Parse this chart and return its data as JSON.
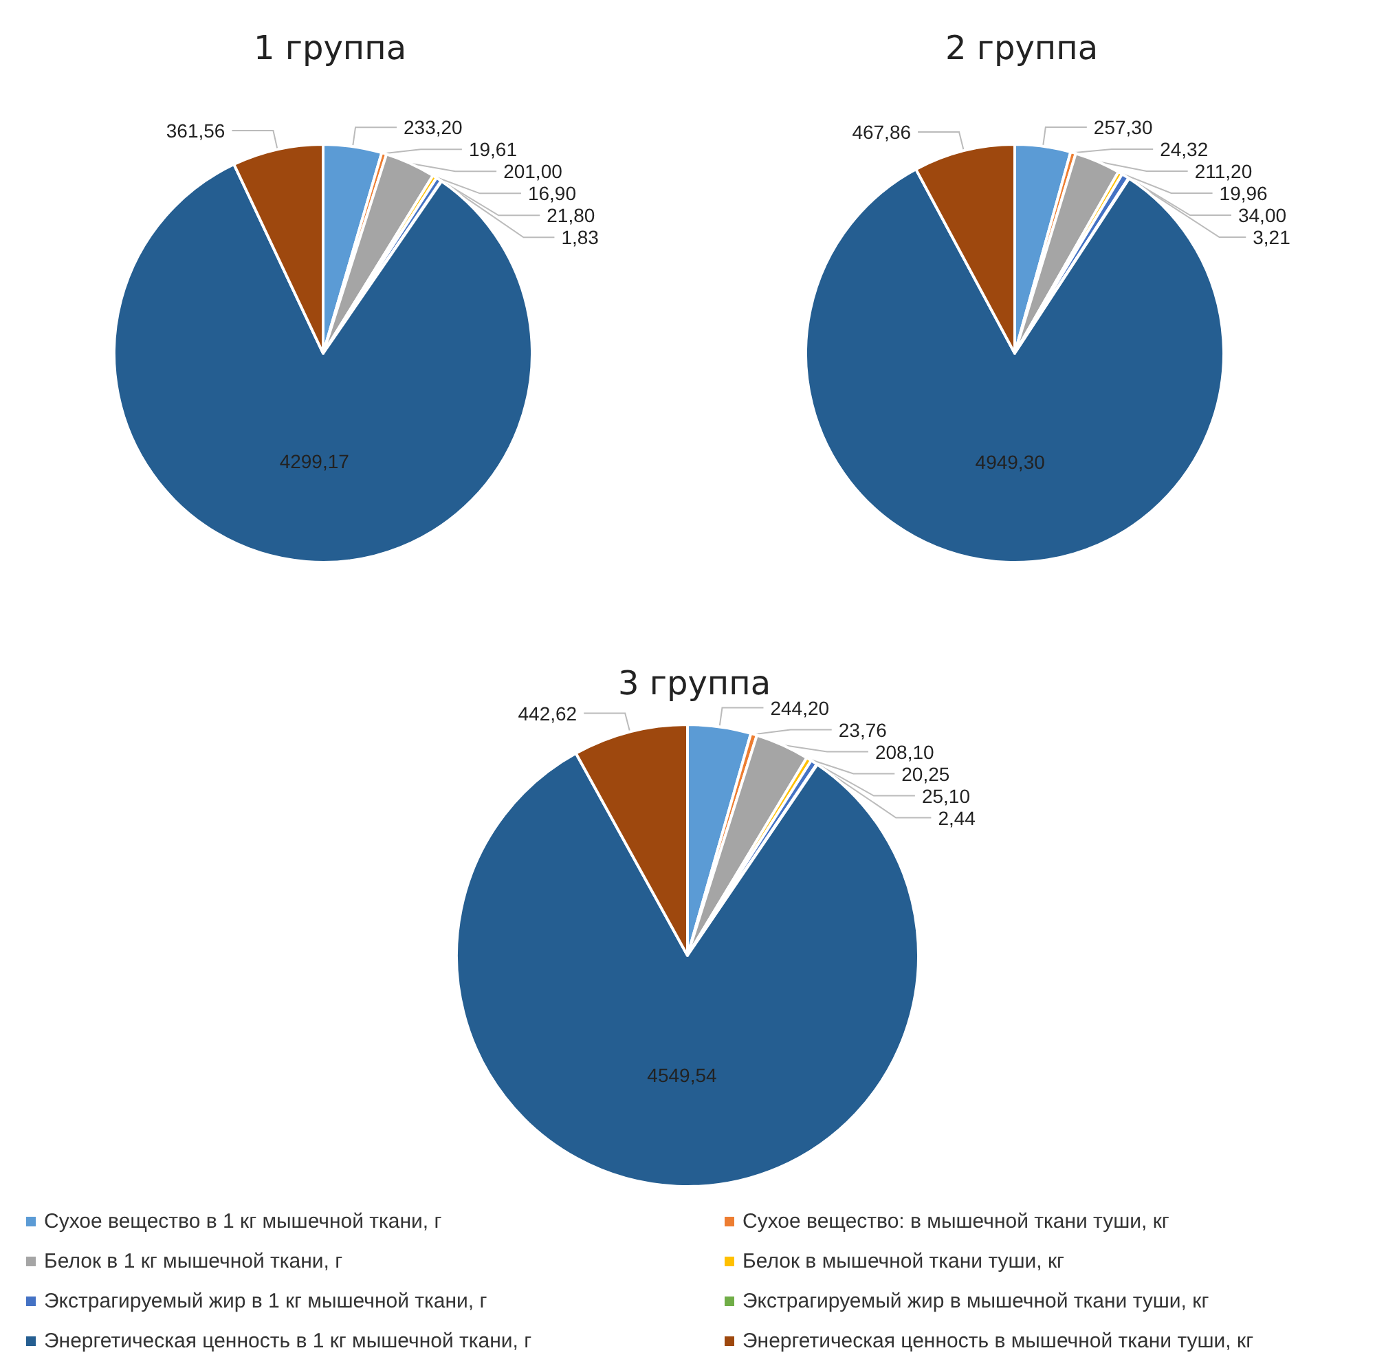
{
  "chart_data": [
    {
      "type": "pie",
      "title": "1 группа",
      "categories": [
        null,
        null,
        null,
        null,
        null,
        null,
        null,
        null
      ],
      "values": [
        233.2,
        19.61,
        201.0,
        16.9,
        21.8,
        1.83,
        4299.17,
        361.56
      ],
      "value_labels": [
        "233,20",
        "19,61",
        "201,00",
        "16,90",
        "21,80",
        "1,83",
        "4299,17",
        "361,56"
      ],
      "colors": [
        "#5b9bd5",
        "#ed7d31",
        "#a5a5a5",
        "#ffc000",
        "#4472c4",
        "#70ad47",
        "#255e91",
        "#9e480e"
      ],
      "legend": false
    },
    {
      "type": "pie",
      "title": "2 группа",
      "categories": [
        null,
        null,
        null,
        null,
        null,
        null,
        null,
        null
      ],
      "values": [
        257.3,
        24.32,
        211.2,
        19.96,
        34.0,
        3.21,
        4949.3,
        467.86
      ],
      "value_labels": [
        "257,30",
        "24,32",
        "211,20",
        "19,96",
        "34,00",
        "3,21",
        "4949,30",
        "467,86"
      ],
      "colors": [
        "#5b9bd5",
        "#ed7d31",
        "#a5a5a5",
        "#ffc000",
        "#4472c4",
        "#70ad47",
        "#255e91",
        "#9e480e"
      ],
      "legend": false
    },
    {
      "type": "pie",
      "title": "3 группа",
      "categories": [
        "Сухое вещество в 1 кг мышечной ткани, г",
        "Сухое вещество: в мышечной ткани туши, кг",
        "Белок в 1 кг мышечной ткани, г",
        "Белок в мышечной ткани туши, кг",
        "Экстрагируемый жир в 1 кг мышечной ткани, г",
        "Экстрагируемый жир в мышечной ткани туши, кг",
        "Энергетическая ценность в 1 кг мышечной ткани, г",
        "Энергетическая ценность в мышечной ткани туши, кг"
      ],
      "values": [
        244.2,
        23.76,
        208.1,
        20.25,
        25.1,
        2.44,
        4549.54,
        442.62
      ],
      "value_labels": [
        "244,20",
        "23,76",
        "208,10",
        "20,25",
        "25,10",
        "2,44",
        "4549,54",
        "442,62"
      ],
      "colors": [
        "#5b9bd5",
        "#ed7d31",
        "#a5a5a5",
        "#ffc000",
        "#4472c4",
        "#70ad47",
        "#255e91",
        "#9e480e"
      ],
      "legend": "bottom"
    }
  ]
}
